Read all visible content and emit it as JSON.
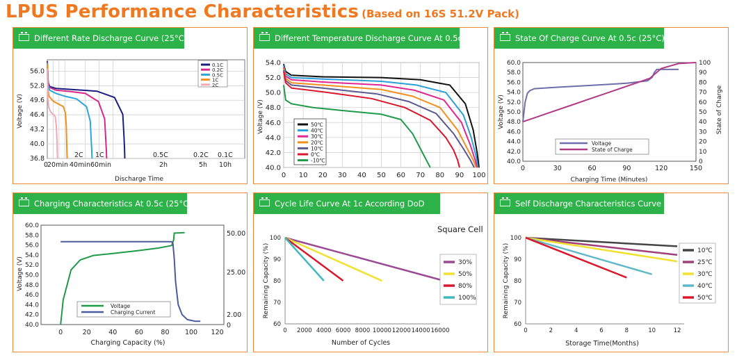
{
  "title": {
    "main": "LPUS Performance Characteristics",
    "sub": "(Based on 16S 51.2V Pack)"
  },
  "colors": {
    "title": "#f07820",
    "header": "#2db24a",
    "border": "#f08a3a"
  },
  "chart_data": [
    {
      "id": "rate",
      "type": "line",
      "title": "Different Rate Discharge Curve (25°C)",
      "xlabel": "Discharge Time",
      "ylabel": "Voltage (V)",
      "ylim": [
        36.8,
        58.5
      ],
      "yticks": [
        "56.0",
        "52.8",
        "49.6",
        "46.4",
        "43.2",
        "40.0",
        "36.8"
      ],
      "xlim": [
        0,
        675
      ],
      "xtick_labels": [
        "0",
        "20min",
        "40min",
        "60min",
        "2h",
        "5h",
        "10h"
      ],
      "xtick_values": [
        0,
        20,
        40,
        60,
        130,
        177,
        225
      ],
      "curve_labels": [
        "2C",
        "1C",
        "0.5C",
        "0.2C",
        "0.1C"
      ],
      "legend": [
        "0.1C",
        "0.2C",
        "0.5C",
        "1C",
        "2C"
      ],
      "legend_position": "top-right",
      "grid": true,
      "series": [
        {
          "name": "0.1C",
          "color": "#1a1e80",
          "x": [
            0,
            3,
            8,
            30,
            100,
            170,
            230,
            258,
            262,
            264,
            265
          ],
          "y": [
            58.2,
            53.5,
            52.6,
            52.2,
            51.9,
            51.6,
            50.2,
            46.5,
            42,
            39,
            36.8
          ]
        },
        {
          "name": "0.2C",
          "color": "#d6288a",
          "x": [
            0,
            3,
            8,
            30,
            80,
            130,
            175,
            196,
            200,
            202,
            203
          ],
          "y": [
            58,
            53.2,
            52.4,
            51.8,
            51.5,
            51.1,
            49.3,
            45.5,
            41,
            38.5,
            36.8
          ]
        },
        {
          "name": "0.5C",
          "color": "#2aa7d8",
          "x": [
            0,
            3,
            8,
            30,
            60,
            100,
            134,
            147,
            150,
            152,
            153
          ],
          "y": [
            57.8,
            52.7,
            51.8,
            51.1,
            50.5,
            49.9,
            48.2,
            45,
            41,
            38.5,
            36.8
          ]
        },
        {
          "name": "1C",
          "color": "#f0901e",
          "x": [
            0,
            2,
            6,
            20,
            40,
            55,
            62,
            65,
            66,
            67,
            68
          ],
          "y": [
            57.5,
            52,
            50.5,
            49.4,
            48.7,
            48.2,
            46.8,
            44,
            41,
            38.5,
            36.8
          ]
        },
        {
          "name": "2C",
          "color": "#f2a8b6",
          "x": [
            0,
            2,
            5,
            12,
            20,
            27,
            31,
            33,
            34,
            35
          ],
          "y": [
            56.5,
            50,
            48,
            47,
            46.5,
            46,
            44,
            41,
            38.5,
            36.8
          ]
        }
      ]
    },
    {
      "id": "temperature",
      "type": "line",
      "title": "Different Temperature Discharge Curve At 0.5c",
      "xlabel": "",
      "ylabel": "Voltage (V)",
      "ylim": [
        40,
        54
      ],
      "yticks": [
        40,
        42,
        44,
        46,
        48,
        50,
        52,
        54
      ],
      "xlim": [
        0,
        100
      ],
      "xticks": [
        0,
        10,
        20,
        30,
        40,
        50,
        60,
        70,
        80,
        90,
        100
      ],
      "legend": [
        "50℃",
        "40℃",
        "30℃",
        "20℃",
        "10℃",
        "0℃",
        "-10℃"
      ],
      "legend_position": "bottom-left",
      "grid": true,
      "series": [
        {
          "name": "50℃",
          "color": "#111111",
          "x": [
            0,
            1,
            4,
            20,
            50,
            70,
            85,
            93,
            97,
            99,
            100
          ],
          "y": [
            53.8,
            52.8,
            52.3,
            52.1,
            52,
            51.7,
            51,
            48.5,
            45,
            42,
            40
          ]
        },
        {
          "name": "40℃",
          "color": "#2a9fd8",
          "x": [
            0,
            1,
            4,
            20,
            50,
            68,
            83,
            92,
            96,
            98.5,
            99.5
          ],
          "y": [
            53.6,
            52.5,
            52,
            51.8,
            51.5,
            51,
            50,
            47,
            44,
            41.5,
            40
          ]
        },
        {
          "name": "30℃",
          "color": "#e02890",
          "x": [
            0,
            1,
            4,
            20,
            50,
            67,
            82,
            91,
            95.5,
            98,
            99
          ],
          "y": [
            53.4,
            52.2,
            51.7,
            51.4,
            51,
            50.3,
            49,
            46,
            43,
            41,
            40
          ]
        },
        {
          "name": "20℃",
          "color": "#f0901e",
          "x": [
            0,
            1,
            4,
            20,
            50,
            66,
            80,
            89,
            94,
            97,
            98.5
          ],
          "y": [
            53.2,
            51.9,
            51.3,
            51,
            50.4,
            49.5,
            48,
            45,
            42.5,
            41,
            40
          ]
        },
        {
          "name": "10℃",
          "color": "#5a5a90",
          "x": [
            0,
            1,
            4,
            20,
            48,
            64,
            78,
            87,
            92,
            95.5,
            97.5
          ],
          "y": [
            53,
            51.6,
            51,
            50.6,
            49.8,
            48.8,
            47.2,
            44.5,
            42.5,
            41,
            40
          ]
        },
        {
          "name": "0℃",
          "color": "#d8182c",
          "x": [
            0,
            1,
            4,
            20,
            45,
            62,
            75,
            83,
            87,
            89,
            90
          ],
          "y": [
            52.8,
            51.3,
            50.6,
            50.1,
            49.2,
            48,
            46.3,
            44,
            42.3,
            41,
            40
          ]
        },
        {
          "name": "-10℃",
          "color": "#1f9a48",
          "x": [
            0,
            1,
            4,
            15,
            30,
            50,
            60,
            66,
            70,
            73,
            75
          ],
          "y": [
            51,
            49,
            48.5,
            48,
            47.6,
            47.1,
            46.4,
            44.5,
            42.5,
            41,
            40
          ]
        }
      ]
    },
    {
      "id": "soc",
      "type": "line",
      "title": "State Of Charge Curve At 0.5c (25°C)",
      "xlabel": "Charging Time (Minutes)",
      "ylabel": "Voltage (V)",
      "ylabel2": "State of Charge",
      "ylim": [
        40,
        60
      ],
      "ylim2": [
        0,
        100
      ],
      "yticks": [
        "40.0",
        "42.0",
        "44.0",
        "46.0",
        "48.0",
        "50.0",
        "52.0",
        "54.0",
        "56.0",
        "58.0",
        "60.0"
      ],
      "yticks2": [
        0,
        10,
        20,
        30,
        40,
        50,
        60,
        70,
        80,
        90,
        100
      ],
      "xlim": [
        0,
        150
      ],
      "xticks": [
        0,
        30,
        60,
        90,
        120,
        150
      ],
      "legend": [
        "Voltage",
        "State of Charge"
      ],
      "legend_position": "bottom-center",
      "grid": false,
      "series": [
        {
          "name": "Voltage",
          "color": "#6e6eaa",
          "x": [
            0,
            2,
            4,
            6,
            10,
            30,
            60,
            90,
            108,
            112,
            114,
            116,
            135
          ],
          "y": [
            48,
            52,
            53.8,
            54.3,
            54.7,
            55,
            55.4,
            55.8,
            56.3,
            57,
            58,
            58.6,
            58.6
          ]
        },
        {
          "name": "State of Charge",
          "color": "#b03a84",
          "axis": "right",
          "x": [
            0,
            20,
            40,
            60,
            80,
            100,
            110,
            114,
            120,
            135,
            150
          ],
          "y": [
            40,
            48,
            56,
            64,
            72,
            80,
            84,
            88,
            94,
            99,
            100
          ]
        }
      ]
    },
    {
      "id": "charging",
      "type": "line",
      "title": "Charging Characteristics At 0.5c (25°C)",
      "xlabel": "Charging Capacity (%)",
      "ylabel": "Voltage (V)",
      "ylim": [
        40,
        60
      ],
      "yticks": [
        "40.0",
        "42.0",
        "44.0",
        "46.0",
        "48.0",
        "50.0",
        "52.0",
        "54.0",
        "56.0",
        "58.0",
        "60.0"
      ],
      "xlim": [
        -15,
        125
      ],
      "xticks": [
        0,
        20,
        40,
        60,
        80,
        100,
        120
      ],
      "yticks2_labels": [
        "50.00",
        "25.00",
        "2.00",
        "0"
      ],
      "legend": [
        "Voltage",
        "Charging Current"
      ],
      "legend_position": "bottom-left",
      "grid": false,
      "series": [
        {
          "name": "Voltage",
          "color": "#1f9a48",
          "x": [
            0,
            2,
            5,
            8,
            15,
            25,
            40,
            60,
            75,
            85,
            86.5,
            87,
            95
          ],
          "y": [
            40,
            45,
            48,
            51,
            53,
            53.9,
            54.3,
            54.9,
            55.4,
            55.9,
            57,
            58.4,
            58.5
          ]
        },
        {
          "name": "Charging Current",
          "color": "#4a5a9a",
          "axis": "right",
          "x": [
            0,
            85,
            86,
            87,
            88,
            90,
            93,
            97,
            103,
            107
          ],
          "y": [
            50,
            50,
            49,
            40,
            26,
            12,
            6,
            3,
            2,
            2
          ]
        }
      ]
    },
    {
      "id": "cycle",
      "type": "line",
      "title": "Cycle Life Curve At 1c According DoD",
      "annotation": "Square Cell",
      "xlabel": "Number of Cycles",
      "ylabel": "Remaining Capacity (%)",
      "ylim": [
        60,
        100
      ],
      "yticks": [
        60,
        70,
        80,
        90,
        100
      ],
      "xlim": [
        0,
        16000
      ],
      "xticks": [
        0,
        2000,
        4000,
        6000,
        8000,
        10000,
        12000,
        14000,
        16000
      ],
      "legend": [
        "30%",
        "50%",
        "80%",
        "100%"
      ],
      "legend_position": "right",
      "grid": false,
      "series": [
        {
          "name": "30%",
          "color": "#9a4a94",
          "x": [
            0,
            16000
          ],
          "y": [
            100,
            80.5
          ]
        },
        {
          "name": "50%",
          "color": "#f0e030",
          "x": [
            0,
            10000
          ],
          "y": [
            100,
            80
          ]
        },
        {
          "name": "80%",
          "color": "#d8182c",
          "x": [
            0,
            6000
          ],
          "y": [
            100,
            80
          ]
        },
        {
          "name": "100%",
          "color": "#40b8c0",
          "x": [
            0,
            4000
          ],
          "y": [
            100,
            80
          ]
        }
      ]
    },
    {
      "id": "self",
      "type": "line",
      "title": "Self Discharge Characteristics Curve",
      "xlabel": "Storage Time(Months)",
      "ylabel": "Remaining Capacity (%)",
      "ylim": [
        60,
        100
      ],
      "yticks": [
        60,
        70,
        80,
        90,
        100
      ],
      "xlim": [
        0,
        12
      ],
      "xticks": [
        0,
        2,
        4,
        6,
        8,
        10,
        12
      ],
      "legend": [
        "10℃",
        "25℃",
        "30℃",
        "40℃",
        "50℃"
      ],
      "legend_position": "right",
      "grid": false,
      "series": [
        {
          "name": "10℃",
          "color": "#444444",
          "x": [
            0,
            12
          ],
          "y": [
            100,
            96
          ]
        },
        {
          "name": "25℃",
          "color": "#a0407a",
          "x": [
            0,
            12
          ],
          "y": [
            100,
            92
          ]
        },
        {
          "name": "30℃",
          "color": "#f0e030",
          "x": [
            0,
            12
          ],
          "y": [
            100,
            89
          ]
        },
        {
          "name": "40℃",
          "color": "#60b8c8",
          "x": [
            0,
            10
          ],
          "y": [
            100,
            83
          ]
        },
        {
          "name": "50℃",
          "color": "#d8182c",
          "x": [
            0,
            8
          ],
          "y": [
            100,
            81.5
          ]
        }
      ]
    }
  ]
}
